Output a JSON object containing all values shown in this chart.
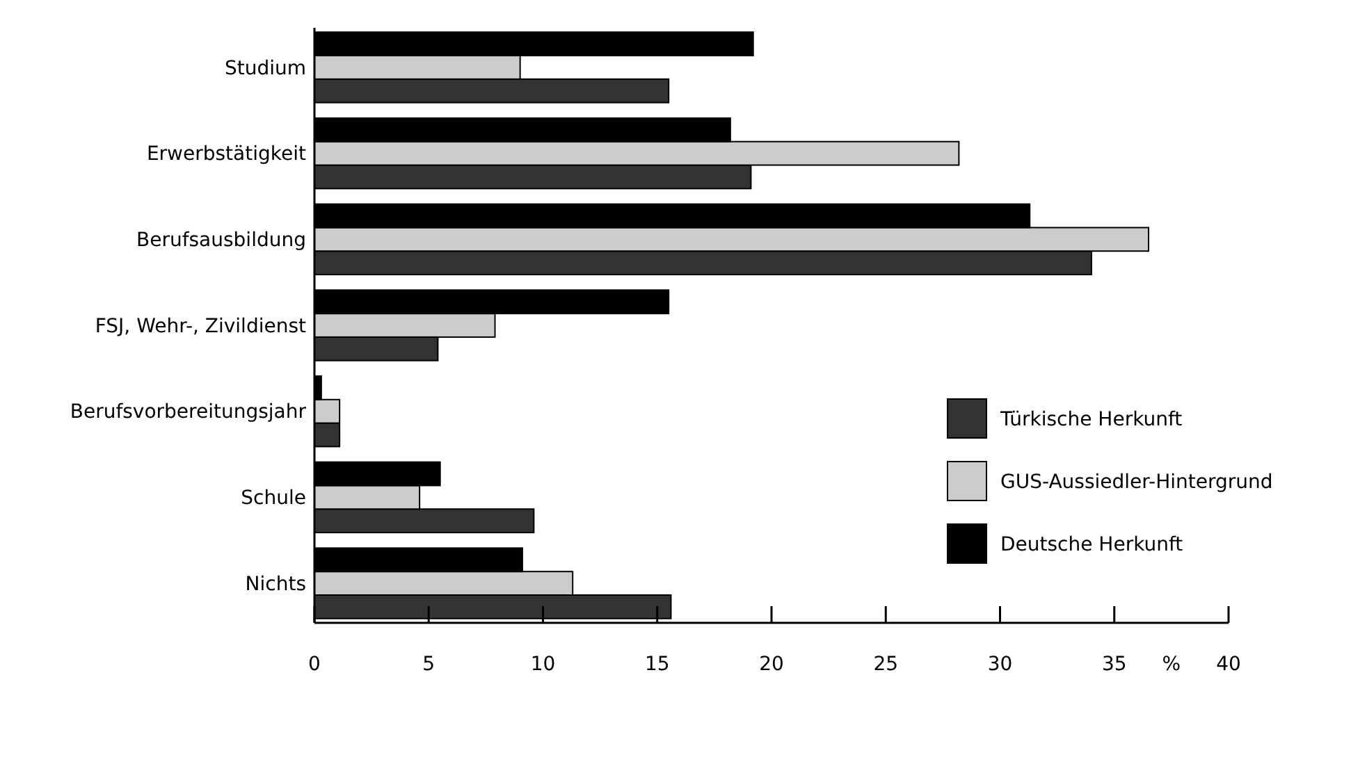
{
  "chart_data": {
    "type": "bar",
    "orientation": "horizontal",
    "categories": [
      "Studium",
      "Erwerbstätigkeit",
      "Berufsausbildung",
      "FSJ, Wehr-, Zivildienst",
      "Berufsvorbereitungsjahr",
      "Schule",
      "Nichts"
    ],
    "series": [
      {
        "name": "Türkische Herkunft",
        "color": "#333333",
        "values": [
          15.5,
          19.1,
          34.0,
          5.4,
          1.1,
          9.6,
          15.6
        ]
      },
      {
        "name": "GUS-Aussiedler-Hintergrund",
        "color": "#cccccc",
        "values": [
          9.0,
          28.2,
          36.5,
          7.9,
          1.1,
          4.6,
          11.3
        ]
      },
      {
        "name": "Deutsche Herkunft",
        "color": "#000000",
        "values": [
          19.2,
          18.2,
          31.3,
          15.5,
          0.3,
          5.5,
          9.1
        ]
      }
    ],
    "xlim": [
      0,
      40
    ],
    "xticks": [
      0,
      5,
      10,
      15,
      20,
      25,
      30,
      35,
      40
    ],
    "xlabel": "%",
    "legend": "right",
    "grid": false
  }
}
